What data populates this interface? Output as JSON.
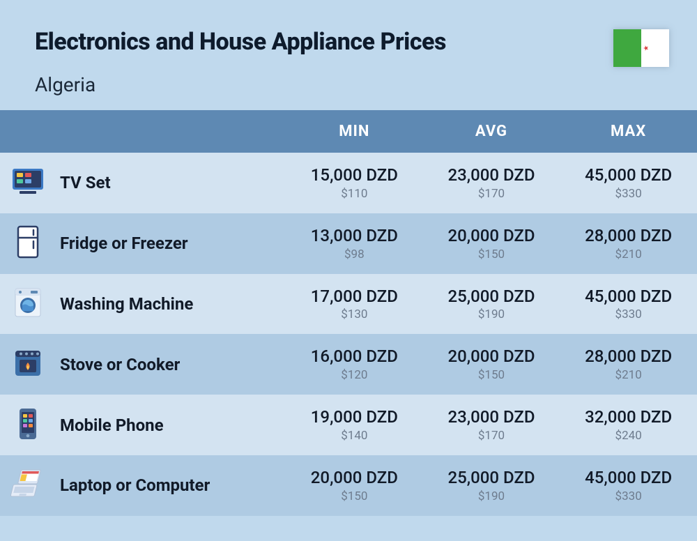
{
  "header": {
    "title": "Electronics and House Appliance Prices",
    "country": "Algeria"
  },
  "columns": {
    "min": "MIN",
    "avg": "AVG",
    "max": "MAX"
  },
  "rows": [
    {
      "icon": "tv-icon",
      "name": "TV Set",
      "min": {
        "dzd": "15,000 DZD",
        "usd": "$110"
      },
      "avg": {
        "dzd": "23,000 DZD",
        "usd": "$170"
      },
      "max": {
        "dzd": "45,000 DZD",
        "usd": "$330"
      }
    },
    {
      "icon": "fridge-icon",
      "name": "Fridge or Freezer",
      "min": {
        "dzd": "13,000 DZD",
        "usd": "$98"
      },
      "avg": {
        "dzd": "20,000 DZD",
        "usd": "$150"
      },
      "max": {
        "dzd": "28,000 DZD",
        "usd": "$210"
      }
    },
    {
      "icon": "washing-icon",
      "name": "Washing Machine",
      "min": {
        "dzd": "17,000 DZD",
        "usd": "$130"
      },
      "avg": {
        "dzd": "25,000 DZD",
        "usd": "$190"
      },
      "max": {
        "dzd": "45,000 DZD",
        "usd": "$330"
      }
    },
    {
      "icon": "stove-icon",
      "name": "Stove or Cooker",
      "min": {
        "dzd": "16,000 DZD",
        "usd": "$120"
      },
      "avg": {
        "dzd": "20,000 DZD",
        "usd": "$150"
      },
      "max": {
        "dzd": "28,000 DZD",
        "usd": "$210"
      }
    },
    {
      "icon": "mobile-icon",
      "name": "Mobile Phone",
      "min": {
        "dzd": "19,000 DZD",
        "usd": "$140"
      },
      "avg": {
        "dzd": "23,000 DZD",
        "usd": "$170"
      },
      "max": {
        "dzd": "32,000 DZD",
        "usd": "$240"
      }
    },
    {
      "icon": "laptop-icon",
      "name": "Laptop or Computer",
      "min": {
        "dzd": "20,000 DZD",
        "usd": "$150"
      },
      "avg": {
        "dzd": "25,000 DZD",
        "usd": "$190"
      },
      "max": {
        "dzd": "45,000 DZD",
        "usd": "$330"
      }
    }
  ],
  "styling": {
    "page_background": "#c0d9ed",
    "header_band": "#5e89b3",
    "row_alt_light": "#d3e3f1",
    "row_alt_dark": "#afcbe3",
    "title_color": "#0e1b2c",
    "main_text_color": "#111a28",
    "usd_color": "#6e7c8e",
    "header_text_color": "#ffffff",
    "title_fontsize": 34,
    "country_fontsize": 28,
    "header_fontsize": 22,
    "name_fontsize": 24,
    "price_fontsize": 24,
    "usd_fontsize": 17,
    "flag_green": "#3fa83f",
    "flag_red": "#d93a3a"
  }
}
